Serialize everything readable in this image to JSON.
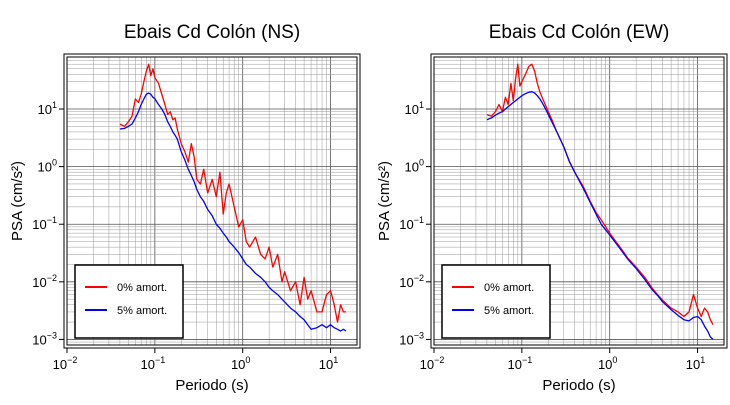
{
  "chart_data": [
    {
      "type": "line",
      "title": "Ebais Cd Colón (NS)",
      "xlabel": "Periodo (s)",
      "ylabel": "PSA (cm/s²)",
      "xscale": "log",
      "yscale": "log",
      "xlim": [
        0.01,
        20
      ],
      "ylim": [
        0.0008,
        80
      ],
      "grid": true,
      "legend_position": "bottom-left",
      "x_ticks": [
        {
          "value": 0.01,
          "base": "10",
          "exp": "−2"
        },
        {
          "value": 0.1,
          "base": "10",
          "exp": "−1"
        },
        {
          "value": 1,
          "base": "10",
          "exp": "0"
        },
        {
          "value": 10,
          "base": "10",
          "exp": "1"
        }
      ],
      "y_ticks": [
        {
          "value": 0.001,
          "base": "10",
          "exp": "−3"
        },
        {
          "value": 0.01,
          "base": "10",
          "exp": "−2"
        },
        {
          "value": 0.1,
          "base": "10",
          "exp": "−1"
        },
        {
          "value": 1,
          "base": "10",
          "exp": "0"
        },
        {
          "value": 10,
          "base": "10",
          "exp": "1"
        }
      ],
      "series": [
        {
          "name": "0% amort.",
          "color": "#ff0000",
          "x": [
            0.04,
            0.045,
            0.05,
            0.055,
            0.06,
            0.065,
            0.07,
            0.075,
            0.08,
            0.085,
            0.09,
            0.095,
            0.1,
            0.11,
            0.12,
            0.13,
            0.14,
            0.15,
            0.16,
            0.17,
            0.18,
            0.2,
            0.22,
            0.24,
            0.26,
            0.28,
            0.3,
            0.33,
            0.36,
            0.4,
            0.45,
            0.5,
            0.55,
            0.6,
            0.65,
            0.7,
            0.8,
            0.9,
            1.0,
            1.1,
            1.2,
            1.4,
            1.6,
            1.8,
            2.0,
            2.2,
            2.5,
            2.8,
            3.0,
            3.5,
            4.0,
            4.5,
            5.0,
            5.5,
            6.0,
            7.0,
            8.0,
            9.0,
            10.0,
            11.0,
            12.0,
            13.0,
            14.0,
            15.0
          ],
          "y": [
            5.5,
            5.0,
            6.0,
            7.5,
            15.0,
            13.0,
            18.0,
            30.0,
            45.0,
            60.0,
            38.0,
            50.0,
            35.0,
            28.0,
            18.0,
            12.0,
            8.0,
            9.0,
            6.5,
            7.0,
            4.5,
            2.5,
            1.8,
            1.2,
            2.5,
            1.5,
            0.6,
            0.5,
            0.9,
            0.35,
            0.6,
            0.3,
            0.8,
            0.15,
            0.35,
            0.5,
            0.2,
            0.09,
            0.12,
            0.05,
            0.04,
            0.06,
            0.03,
            0.025,
            0.04,
            0.018,
            0.03,
            0.01,
            0.015,
            0.007,
            0.01,
            0.004,
            0.012,
            0.005,
            0.007,
            0.003,
            0.003,
            0.006,
            0.007,
            0.004,
            0.002,
            0.004,
            0.003,
            0.003
          ]
        },
        {
          "name": "5% amort.",
          "color": "#0000ff",
          "x": [
            0.04,
            0.045,
            0.05,
            0.055,
            0.06,
            0.065,
            0.07,
            0.075,
            0.08,
            0.085,
            0.09,
            0.095,
            0.1,
            0.11,
            0.12,
            0.13,
            0.14,
            0.15,
            0.16,
            0.17,
            0.18,
            0.2,
            0.22,
            0.24,
            0.26,
            0.28,
            0.3,
            0.33,
            0.36,
            0.4,
            0.45,
            0.5,
            0.55,
            0.6,
            0.65,
            0.7,
            0.8,
            0.9,
            1.0,
            1.1,
            1.2,
            1.4,
            1.6,
            1.8,
            2.0,
            2.2,
            2.5,
            2.8,
            3.0,
            3.5,
            4.0,
            4.5,
            5.0,
            5.5,
            6.0,
            7.0,
            8.0,
            9.0,
            10.0,
            11.0,
            12.0,
            13.0,
            14.0,
            15.0
          ],
          "y": [
            4.5,
            4.6,
            5.0,
            5.5,
            7.0,
            9.0,
            12.0,
            15.0,
            18.0,
            19.0,
            18.0,
            16.0,
            15.0,
            12.0,
            10.0,
            8.0,
            6.0,
            5.0,
            4.0,
            3.5,
            3.0,
            1.8,
            1.3,
            0.9,
            0.7,
            0.55,
            0.4,
            0.3,
            0.25,
            0.18,
            0.14,
            0.1,
            0.085,
            0.07,
            0.06,
            0.05,
            0.04,
            0.032,
            0.025,
            0.02,
            0.018,
            0.014,
            0.012,
            0.01,
            0.008,
            0.007,
            0.006,
            0.005,
            0.0045,
            0.0035,
            0.003,
            0.0025,
            0.0022,
            0.0018,
            0.0015,
            0.0016,
            0.0018,
            0.0016,
            0.0018,
            0.0016,
            0.0015,
            0.0014,
            0.0015,
            0.0014
          ]
        }
      ]
    },
    {
      "type": "line",
      "title": "Ebais Cd Colón (EW)",
      "xlabel": "Periodo (s)",
      "ylabel": "PSA (cm/s²)",
      "xscale": "log",
      "yscale": "log",
      "xlim": [
        0.01,
        20
      ],
      "ylim": [
        0.0008,
        80
      ],
      "grid": true,
      "legend_position": "bottom-left",
      "x_ticks": [
        {
          "value": 0.01,
          "base": "10",
          "exp": "−2"
        },
        {
          "value": 0.1,
          "base": "10",
          "exp": "−1"
        },
        {
          "value": 1,
          "base": "10",
          "exp": "0"
        },
        {
          "value": 10,
          "base": "10",
          "exp": "1"
        }
      ],
      "y_ticks": [
        {
          "value": 0.001,
          "base": "10",
          "exp": "−3"
        },
        {
          "value": 0.01,
          "base": "10",
          "exp": "−2"
        },
        {
          "value": 0.1,
          "base": "10",
          "exp": "−1"
        },
        {
          "value": 1,
          "base": "10",
          "exp": "0"
        },
        {
          "value": 10,
          "base": "10",
          "exp": "1"
        }
      ],
      "series": [
        {
          "name": "0% amort.",
          "color": "#ff0000",
          "x": [
            0.04,
            0.045,
            0.05,
            0.055,
            0.06,
            0.065,
            0.07,
            0.075,
            0.08,
            0.085,
            0.09,
            0.095,
            0.1,
            0.11,
            0.12,
            0.13,
            0.14,
            0.15,
            0.16,
            0.17,
            0.18,
            0.2,
            0.22,
            0.25,
            0.3,
            0.35,
            0.4,
            0.5,
            0.6,
            0.7,
            0.8,
            1.0,
            1.2,
            1.4,
            1.6,
            2.0,
            2.5,
            3.0,
            3.5,
            4.0,
            5.0,
            6.0,
            7.0,
            8.0,
            9.0,
            10.0,
            11.0,
            12.0,
            13.0,
            14.0,
            15.0
          ],
          "y": [
            8.0,
            7.5,
            9.0,
            12.0,
            9.0,
            16.0,
            12.0,
            28.0,
            14.0,
            35.0,
            60.0,
            25.0,
            30.0,
            40.0,
            55.0,
            60.0,
            45.0,
            28.0,
            20.0,
            16.0,
            13.0,
            9.0,
            6.5,
            4.0,
            2.2,
            1.2,
            0.8,
            0.45,
            0.25,
            0.16,
            0.12,
            0.07,
            0.048,
            0.035,
            0.026,
            0.018,
            0.012,
            0.008,
            0.006,
            0.0048,
            0.0035,
            0.003,
            0.0025,
            0.003,
            0.006,
            0.0035,
            0.0025,
            0.0035,
            0.003,
            0.0022,
            0.0018
          ]
        },
        {
          "name": "5% amort.",
          "color": "#0000ff",
          "x": [
            0.04,
            0.045,
            0.05,
            0.055,
            0.06,
            0.065,
            0.07,
            0.075,
            0.08,
            0.085,
            0.09,
            0.095,
            0.1,
            0.11,
            0.12,
            0.13,
            0.14,
            0.15,
            0.16,
            0.17,
            0.18,
            0.2,
            0.22,
            0.25,
            0.3,
            0.35,
            0.4,
            0.5,
            0.6,
            0.7,
            0.8,
            1.0,
            1.2,
            1.4,
            1.6,
            2.0,
            2.5,
            3.0,
            3.5,
            4.0,
            5.0,
            6.0,
            7.0,
            8.0,
            9.0,
            10.0,
            11.0,
            12.0,
            13.0,
            14.0,
            15.0
          ],
          "y": [
            6.5,
            7.0,
            7.8,
            8.5,
            9.0,
            10.0,
            11.0,
            12.0,
            13.0,
            14.0,
            15.0,
            16.0,
            17.0,
            18.5,
            19.5,
            20.0,
            19.0,
            17.0,
            15.0,
            13.0,
            11.0,
            8.0,
            6.0,
            4.0,
            2.2,
            1.2,
            0.8,
            0.42,
            0.24,
            0.15,
            0.1,
            0.065,
            0.045,
            0.033,
            0.025,
            0.017,
            0.011,
            0.0075,
            0.0058,
            0.0045,
            0.0033,
            0.0026,
            0.0022,
            0.0021,
            0.0024,
            0.0025,
            0.0022,
            0.0017,
            0.0014,
            0.0011,
            0.001
          ]
        }
      ]
    }
  ]
}
